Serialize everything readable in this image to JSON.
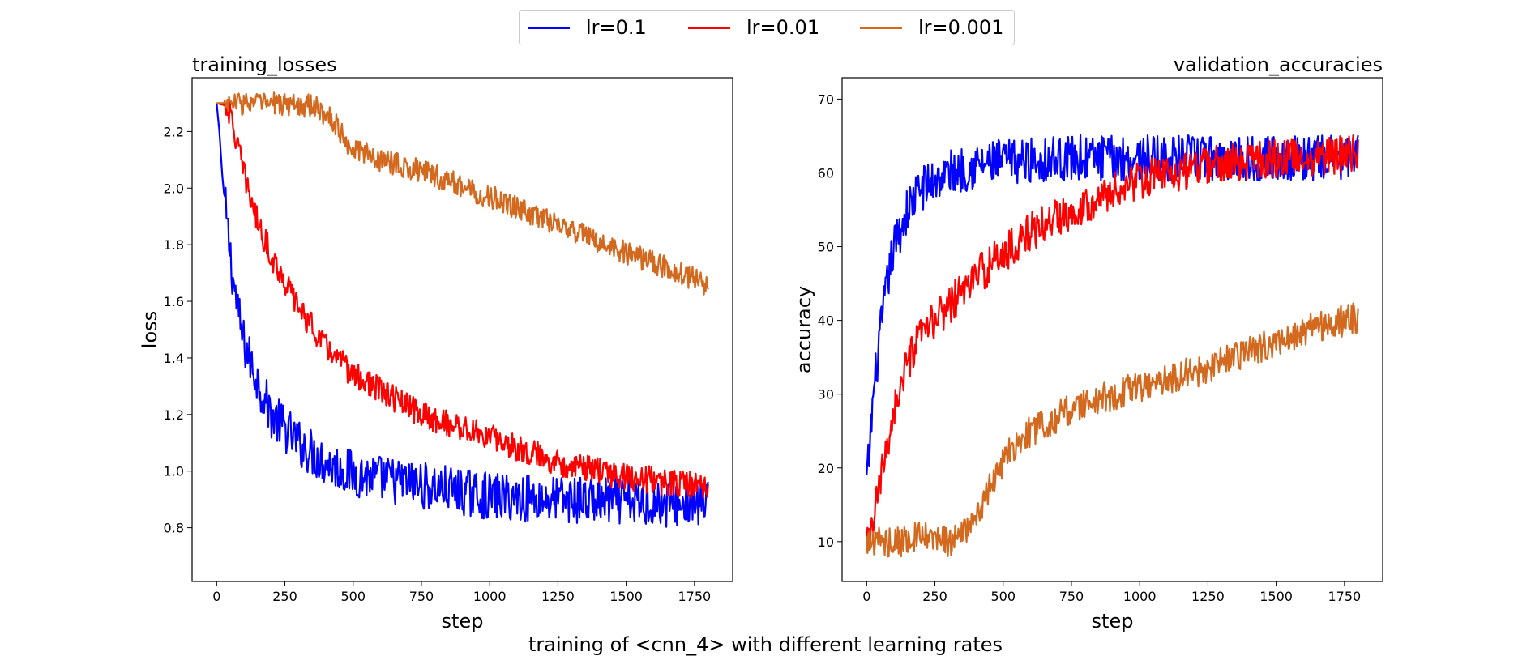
{
  "figure": {
    "suptitle": "training of <cnn_4> with different learning rates",
    "legend": [
      {
        "label": "lr=0.1",
        "color": "#0000ff"
      },
      {
        "label": "lr=0.01",
        "color": "#ff0000"
      },
      {
        "label": "lr=0.001",
        "color": "#d2691e"
      }
    ]
  },
  "chart_data": [
    {
      "type": "line",
      "title": "training_losses",
      "title_align": "left",
      "xlabel": "step",
      "ylabel": "loss",
      "xlim": [
        -90,
        1890
      ],
      "ylim": [
        0.61,
        2.39
      ],
      "xticks": [
        0,
        250,
        500,
        750,
        1000,
        1250,
        1500,
        1750
      ],
      "yticks": [
        0.8,
        1.0,
        1.2,
        1.4,
        1.6,
        1.8,
        2.0,
        2.2
      ],
      "grid": false,
      "series": [
        {
          "name": "lr=0.1",
          "color": "#0000ff",
          "noise": 0.07,
          "x": [
            0,
            10,
            20,
            40,
            60,
            80,
            100,
            150,
            200,
            300,
            400,
            500,
            750,
            1000,
            1250,
            1500,
            1750,
            1800
          ],
          "y": [
            2.3,
            2.2,
            2.05,
            1.85,
            1.68,
            1.55,
            1.45,
            1.32,
            1.2,
            1.1,
            1.03,
            0.99,
            0.95,
            0.91,
            0.9,
            0.89,
            0.88,
            0.88
          ]
        },
        {
          "name": "lr=0.01",
          "color": "#ff0000",
          "noise": 0.04,
          "x": [
            0,
            40,
            60,
            100,
            150,
            200,
            300,
            400,
            500,
            750,
            1000,
            1250,
            1500,
            1750,
            1800
          ],
          "y": [
            2.3,
            2.29,
            2.22,
            2.05,
            1.88,
            1.76,
            1.58,
            1.44,
            1.34,
            1.2,
            1.12,
            1.03,
            0.98,
            0.95,
            0.94
          ]
        },
        {
          "name": "lr=0.001",
          "color": "#d2691e",
          "noise": 0.035,
          "x": [
            0,
            200,
            350,
            420,
            480,
            520,
            600,
            750,
            1000,
            1250,
            1500,
            1750,
            1800
          ],
          "y": [
            2.3,
            2.3,
            2.29,
            2.25,
            2.16,
            2.13,
            2.1,
            2.06,
            1.97,
            1.87,
            1.77,
            1.68,
            1.66
          ]
        }
      ]
    },
    {
      "type": "line",
      "title": "validation_accuracies",
      "title_align": "right",
      "xlabel": "step",
      "ylabel": "accuracy",
      "xlim": [
        -90,
        1890
      ],
      "ylim": [
        4.6,
        72.9
      ],
      "xticks": [
        0,
        250,
        500,
        750,
        1000,
        1250,
        1500,
        1750
      ],
      "yticks": [
        10,
        20,
        30,
        40,
        50,
        60,
        70
      ],
      "grid": false,
      "series": [
        {
          "name": "lr=0.1",
          "color": "#0000ff",
          "noise": 2.6,
          "x": [
            0,
            10,
            20,
            40,
            60,
            80,
            100,
            150,
            200,
            300,
            400,
            500,
            750,
            1000,
            1250,
            1500,
            1750,
            1800
          ],
          "y": [
            18,
            22,
            28,
            35,
            41,
            46,
            50,
            55,
            58,
            60,
            61,
            61.5,
            62,
            62,
            62,
            62,
            62,
            62
          ]
        },
        {
          "name": "lr=0.01",
          "color": "#ff0000",
          "noise": 2.2,
          "x": [
            0,
            20,
            40,
            60,
            80,
            100,
            150,
            200,
            300,
            400,
            500,
            600,
            750,
            1000,
            1250,
            1500,
            1750,
            1800
          ],
          "y": [
            9,
            12,
            16,
            20,
            24,
            28,
            34,
            38,
            42,
            46,
            49,
            52,
            55,
            59,
            61,
            62,
            62.5,
            62.5
          ]
        },
        {
          "name": "lr=0.001",
          "color": "#d2691e",
          "noise": 1.8,
          "x": [
            0,
            100,
            200,
            300,
            350,
            400,
            450,
            500,
            600,
            700,
            750,
            1000,
            1250,
            1500,
            1600,
            1750,
            1800
          ],
          "y": [
            10,
            10,
            10.5,
            10,
            11,
            13,
            17,
            21,
            25,
            27,
            28,
            31,
            33.5,
            37,
            38.5,
            40,
            40.5
          ]
        }
      ]
    }
  ]
}
